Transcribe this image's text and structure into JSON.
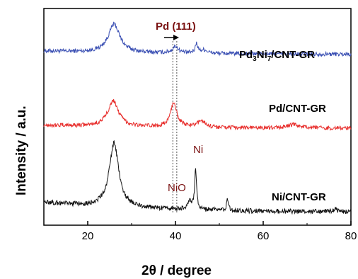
{
  "chart_data": {
    "type": "line",
    "title": "",
    "xlabel": "2θ / degree",
    "ylabel": "Intensity / a.u.",
    "xlim": [
      10,
      80
    ],
    "xticks": [
      "20",
      "40",
      "60",
      "80"
    ],
    "yticks_shown": false,
    "grid": false,
    "series": [
      {
        "name": "Pd3Ni7/CNT-GR",
        "label_main": "Pd",
        "label_sub1": "3",
        "label_mid": "Ni",
        "label_sub2": "7",
        "label_rest": "/CNT-GR",
        "color": "#3a4fb3",
        "offset": 2.35,
        "peaks": [
          [
            26.0,
            0.42,
            1.6
          ],
          [
            40.0,
            0.1,
            0.8
          ],
          [
            44.8,
            0.14,
            0.35
          ],
          [
            46.5,
            0.05,
            1.0
          ]
        ],
        "baseline": 0.05,
        "noise": 0.03
      },
      {
        "name": "Pd/CNT-GR",
        "label_main": "Pd/CNT-GR",
        "color": "#e8302e",
        "offset": 1.25,
        "peaks": [
          [
            25.8,
            0.38,
            1.5
          ],
          [
            39.6,
            0.36,
            0.9
          ],
          [
            46.0,
            0.1,
            1.0
          ],
          [
            67.0,
            0.05,
            1.6
          ]
        ],
        "baseline": 0.05,
        "noise": 0.03
      },
      {
        "name": "Ni/CNT-GR",
        "label_main": "Ni/CNT-GR",
        "color": "#111111",
        "offset": 0.0,
        "peaks": [
          [
            26.0,
            0.95,
            1.3
          ],
          [
            43.2,
            0.12,
            0.6
          ],
          [
            44.6,
            0.6,
            0.25
          ],
          [
            51.9,
            0.18,
            0.25
          ],
          [
            76.5,
            0.06,
            0.3
          ]
        ],
        "baseline": 0.15,
        "noise": 0.035
      }
    ],
    "annotations": {
      "pd111": "Pd (111)",
      "nio": "NiO",
      "ni": "Ni",
      "ref_lines_x": [
        39.4,
        40.3
      ]
    }
  }
}
